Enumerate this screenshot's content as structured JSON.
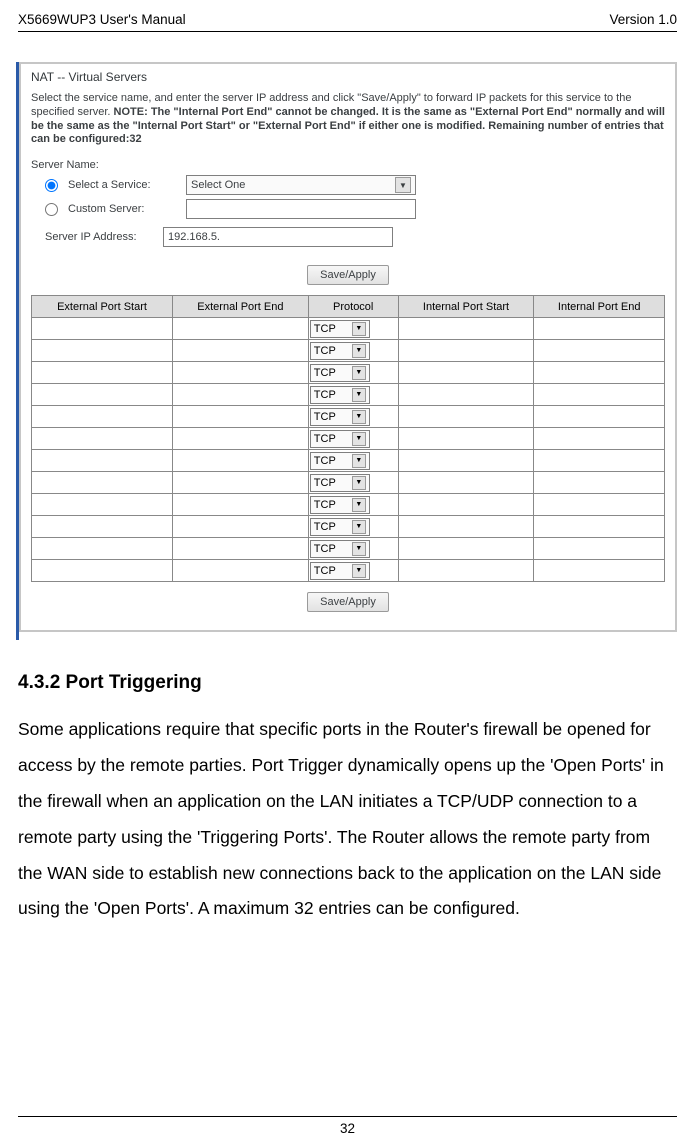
{
  "header": {
    "left": "X5669WUP3 User's Manual",
    "right": "Version 1.0"
  },
  "nat": {
    "title": "NAT -- Virtual Servers",
    "desc_prefix": "Select the service name, and enter the server IP address and click \"Save/Apply\" to forward IP packets for this service to the specified server. ",
    "desc_bold": "NOTE: The \"Internal Port End\" cannot be changed. It is the same as \"External Port End\" normally and will be the same as the \"Internal Port Start\" or \"External Port End\" if either one is modified. Remaining number of entries that can be configured:32",
    "server_name_label": "Server Name:",
    "select_service_label": "Select a Service:",
    "select_service_value": "Select One",
    "custom_server_label": "Custom Server:",
    "server_ip_label": "Server IP Address:",
    "server_ip_value": "192.168.5.",
    "save_apply": "Save/Apply"
  },
  "ports_table": {
    "headers": [
      "External Port Start",
      "External Port End",
      "Protocol",
      "Internal Port Start",
      "Internal Port End"
    ],
    "protocol_value": "TCP",
    "row_count": 12
  },
  "section": {
    "title": "4.3.2 Port Triggering",
    "body": "Some applications require that specific ports in the Router's firewall be opened for access by the remote parties. Port Trigger dynamically opens up the 'Open Ports' in the firewall when an application on the LAN initiates a TCP/UDP connection to a remote party using the 'Triggering Ports'. The Router allows the remote party from the WAN side to establish new connections back to the application on the LAN side using the 'Open Ports'. A maximum 32 entries can be configured."
  },
  "page_number": "32"
}
